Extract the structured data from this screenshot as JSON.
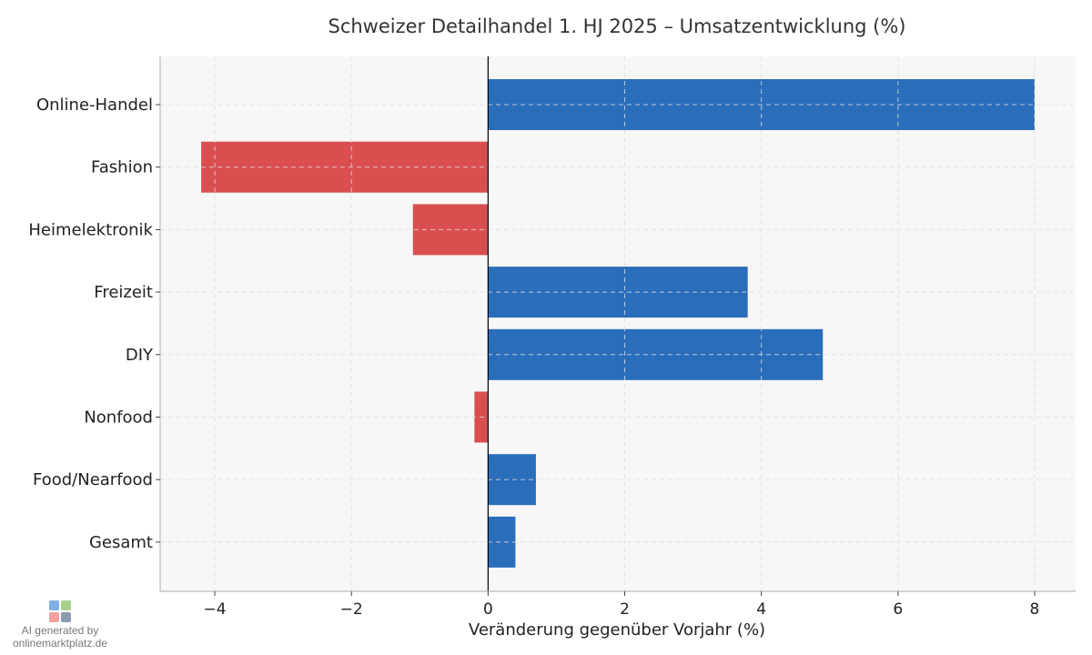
{
  "chart_data": {
    "type": "bar",
    "orientation": "horizontal",
    "title": "Schweizer Detailhandel 1. HJ 2025 – Umsatzentwicklung (%)",
    "xlabel": "Veränderung gegenüber Vorjahr (%)",
    "ylabel": "",
    "categories": [
      "Online-Handel",
      "Fashion",
      "Heimelektronik",
      "Freizeit",
      "DIY",
      "Nonfood",
      "Food/Nearfood",
      "Gesamt"
    ],
    "values": [
      8.0,
      -4.2,
      -1.1,
      3.8,
      4.9,
      -0.2,
      0.7,
      0.4
    ],
    "xlim": [
      -4.8,
      8.6
    ],
    "xticks": [
      -4,
      -2,
      0,
      2,
      4,
      6,
      8
    ],
    "xtick_labels": [
      "−4",
      "−2",
      "0",
      "2",
      "4",
      "6",
      "8"
    ],
    "grid": true,
    "colors": {
      "positive": "#2a6ebb",
      "negative": "#d94f4f",
      "zero_line": "#000000",
      "plot_bg": "#f7f7f7"
    }
  },
  "watermark": {
    "line1": "AI generated by",
    "line2": "onlinemarktplatz.de"
  }
}
